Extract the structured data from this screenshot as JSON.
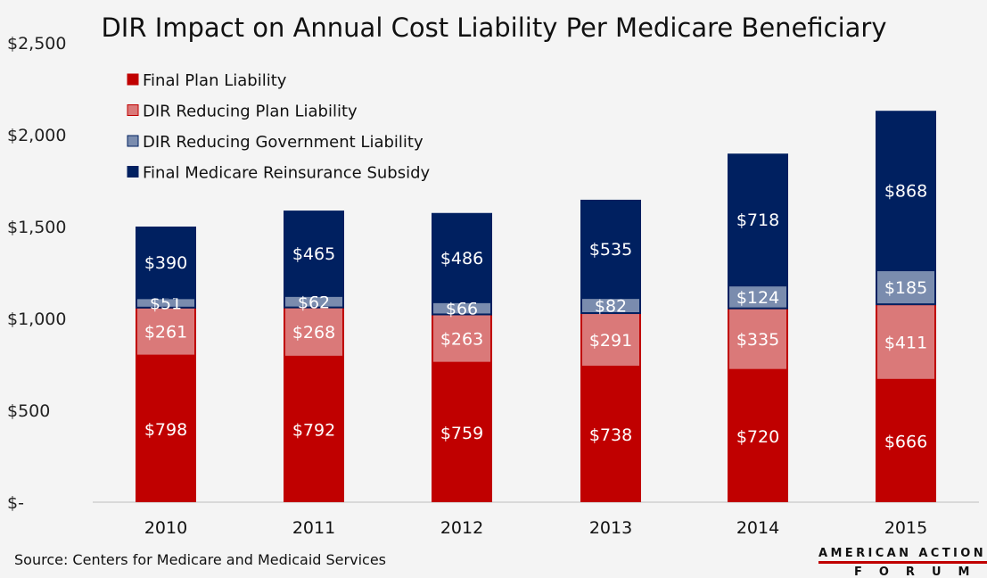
{
  "chart_data": {
    "type": "bar",
    "stacked": true,
    "title": "DIR Impact on Annual Cost Liability Per Medicare Beneficiary",
    "categories": [
      "2010",
      "2011",
      "2012",
      "2013",
      "2014",
      "2015"
    ],
    "series": [
      {
        "name": "Final Plan Liability",
        "color": "#C00000",
        "values": [
          798,
          792,
          759,
          738,
          720,
          666
        ],
        "labels": [
          "$798",
          "$792",
          "$759",
          "$738",
          "$720",
          "$666"
        ]
      },
      {
        "name": "DIR Reducing Plan Liability",
        "color": "#DA7979",
        "values": [
          261,
          268,
          263,
          291,
          335,
          411
        ],
        "labels": [
          "$261",
          "$268",
          "$263",
          "$291",
          "$335",
          "$411"
        ]
      },
      {
        "name": "DIR Reducing Government Liability",
        "color": "#7A8CAE",
        "values": [
          51,
          62,
          66,
          82,
          124,
          185
        ],
        "labels": [
          "$51",
          "$62",
          "$66",
          "$82",
          "$124",
          "$185"
        ]
      },
      {
        "name": "Final Medicare Reinsurance Subsidy",
        "color": "#002060",
        "values": [
          390,
          465,
          486,
          535,
          718,
          868
        ],
        "labels": [
          "$390",
          "$465",
          "$486",
          "$535",
          "$718",
          "$868"
        ]
      }
    ],
    "ylim": [
      0,
      2500
    ],
    "yticks": [
      0,
      500,
      1000,
      1500,
      2000,
      2500
    ],
    "ytick_labels": [
      "$-",
      "$500",
      "$1,000",
      "$1,500",
      "$2,000",
      "$2,500"
    ],
    "grid": false,
    "legend": "top-left"
  },
  "source": "Source: Centers for Medicare and Medicaid Services",
  "logo": {
    "line1": "AMERICAN ACTION",
    "line2": "FORUM"
  }
}
